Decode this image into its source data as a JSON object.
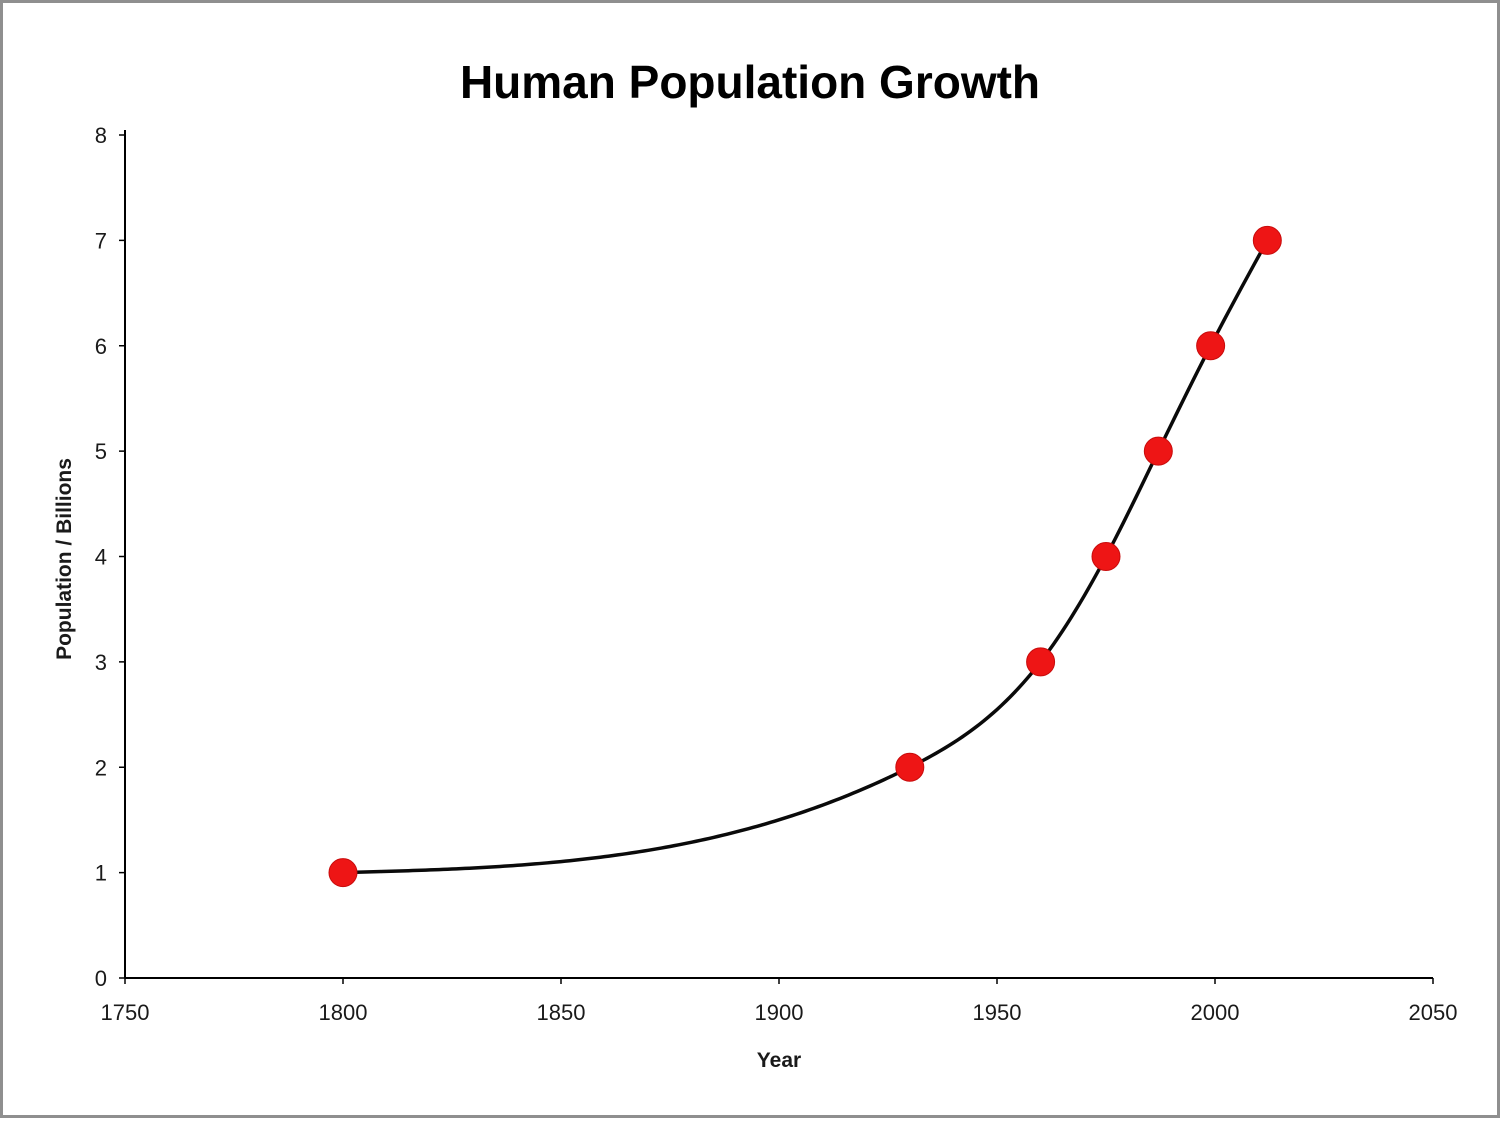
{
  "page": {
    "background_color": "#ffffff",
    "frame_border_color": "#8f8f8f"
  },
  "chart_data": {
    "type": "scatter",
    "title": "Human Population Growth",
    "xlabel": "Year",
    "ylabel": "Population / Billions",
    "xlim": [
      1750,
      2050
    ],
    "ylim": [
      0,
      8
    ],
    "x_ticks": [
      "1750",
      "1800",
      "1850",
      "1900",
      "1950",
      "2000",
      "2050"
    ],
    "x_tick_values": [
      1750,
      1800,
      1850,
      1900,
      1950,
      2000,
      2050
    ],
    "y_ticks": [
      "0",
      "1",
      "2",
      "3",
      "4",
      "5",
      "6",
      "7",
      "8"
    ],
    "y_tick_values": [
      0,
      1,
      2,
      3,
      4,
      5,
      6,
      7,
      8
    ],
    "points": [
      {
        "x": 1800,
        "y": 1
      },
      {
        "x": 1930,
        "y": 2
      },
      {
        "x": 1960,
        "y": 3
      },
      {
        "x": 1975,
        "y": 4
      },
      {
        "x": 1987,
        "y": 5
      },
      {
        "x": 1999,
        "y": 6
      },
      {
        "x": 2012,
        "y": 7
      }
    ],
    "smooth_line": true,
    "marker_color": "#ee1515",
    "marker_edge_color": "#c90c0c",
    "line_color": "#0a0a0a",
    "axis_color": "#000000",
    "grid": false,
    "legend": false
  }
}
